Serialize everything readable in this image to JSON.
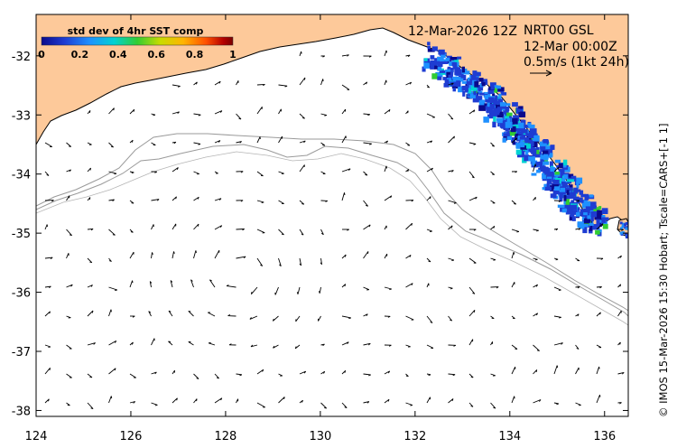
{
  "map": {
    "x_ticks": [
      "124",
      "126",
      "128",
      "130",
      "132",
      "134",
      "136"
    ],
    "y_ticks": [
      "-32",
      "-33",
      "-34",
      "-35",
      "-36",
      "-37",
      "-38"
    ],
    "lon_range": [
      124,
      136.5
    ],
    "lat_range": [
      -38.1,
      -31.3
    ],
    "land_color": "#fdc99a",
    "sea_color": "#ffffff",
    "contour_color": "#9a9a9a",
    "vector_color": "#000000"
  },
  "colorbar": {
    "title": "std dev of 4hr SST comp",
    "ticks": [
      "0",
      "0.2",
      "0.4",
      "0.6",
      "0.8",
      "1"
    ],
    "colormap": [
      "#0a0a8c",
      "#1e3cd2",
      "#1e90ff",
      "#00d2d2",
      "#32cd32",
      "#c8dc00",
      "#ffb400",
      "#ff5000",
      "#b40000",
      "#780000"
    ]
  },
  "annotation": {
    "date_label": "12-Mar-2026 12Z",
    "product": "NRT00 GSL",
    "time": "12-Mar 00:00Z",
    "scale_text": "0.5m/s (1kt 24h)"
  },
  "credit": "© IMOS 15-Mar-2026 15:30 Hobart; Tscale=CARS+[-1 1]"
}
